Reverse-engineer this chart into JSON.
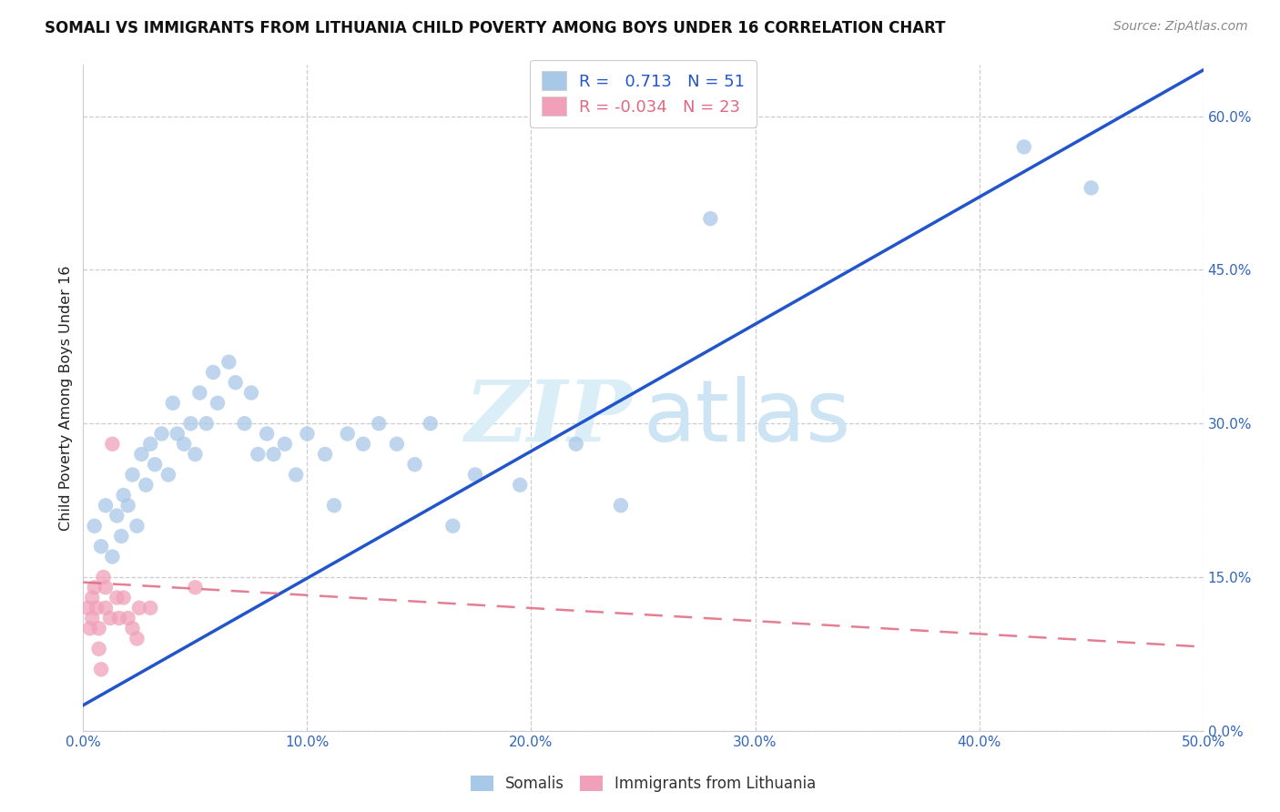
{
  "title": "SOMALI VS IMMIGRANTS FROM LITHUANIA CHILD POVERTY AMONG BOYS UNDER 16 CORRELATION CHART",
  "source": "Source: ZipAtlas.com",
  "ylabel": "Child Poverty Among Boys Under 16",
  "legend_label1": "Somalis",
  "legend_label2": "Immigrants from Lithuania",
  "R1": 0.713,
  "N1": 51,
  "R2": -0.034,
  "N2": 23,
  "xmin": 0.0,
  "xmax": 0.5,
  "ymin": 0.0,
  "ymax": 0.65,
  "color_blue": "#a8c8e8",
  "color_blue_line": "#2255cc",
  "color_pink": "#f0a0b8",
  "color_pink_line": "#e06880",
  "xticks": [
    0.0,
    0.1,
    0.2,
    0.3,
    0.4,
    0.5
  ],
  "xtick_labels": [
    "0.0%",
    "10.0%",
    "20.0%",
    "30.0%",
    "40.0%",
    "50.0%"
  ],
  "yticks_right": [
    0.0,
    0.15,
    0.3,
    0.45,
    0.6
  ],
  "ytick_right_labels": [
    "0.0%",
    "15.0%",
    "30.0%",
    "45.0%",
    "60.0%"
  ],
  "somali_x": [
    0.005,
    0.008,
    0.01,
    0.013,
    0.015,
    0.017,
    0.018,
    0.02,
    0.022,
    0.024,
    0.026,
    0.028,
    0.03,
    0.032,
    0.035,
    0.038,
    0.04,
    0.042,
    0.045,
    0.048,
    0.05,
    0.052,
    0.055,
    0.058,
    0.06,
    0.065,
    0.068,
    0.072,
    0.075,
    0.078,
    0.082,
    0.085,
    0.09,
    0.095,
    0.1,
    0.108,
    0.112,
    0.118,
    0.125,
    0.132,
    0.14,
    0.148,
    0.155,
    0.165,
    0.175,
    0.195,
    0.22,
    0.24,
    0.28,
    0.42,
    0.45
  ],
  "somali_y": [
    0.2,
    0.18,
    0.22,
    0.17,
    0.21,
    0.19,
    0.23,
    0.22,
    0.25,
    0.2,
    0.27,
    0.24,
    0.28,
    0.26,
    0.29,
    0.25,
    0.32,
    0.29,
    0.28,
    0.3,
    0.27,
    0.33,
    0.3,
    0.35,
    0.32,
    0.36,
    0.34,
    0.3,
    0.33,
    0.27,
    0.29,
    0.27,
    0.28,
    0.25,
    0.29,
    0.27,
    0.22,
    0.29,
    0.28,
    0.3,
    0.28,
    0.26,
    0.3,
    0.2,
    0.25,
    0.24,
    0.28,
    0.22,
    0.5,
    0.57,
    0.53
  ],
  "lithuania_x": [
    0.002,
    0.003,
    0.004,
    0.004,
    0.005,
    0.006,
    0.007,
    0.007,
    0.008,
    0.009,
    0.01,
    0.01,
    0.012,
    0.013,
    0.015,
    0.016,
    0.018,
    0.02,
    0.022,
    0.024,
    0.025,
    0.03,
    0.05
  ],
  "lithuania_y": [
    0.12,
    0.1,
    0.13,
    0.11,
    0.14,
    0.12,
    0.1,
    0.08,
    0.06,
    0.15,
    0.14,
    0.12,
    0.11,
    0.28,
    0.13,
    0.11,
    0.13,
    0.11,
    0.1,
    0.09,
    0.12,
    0.12,
    0.14
  ]
}
